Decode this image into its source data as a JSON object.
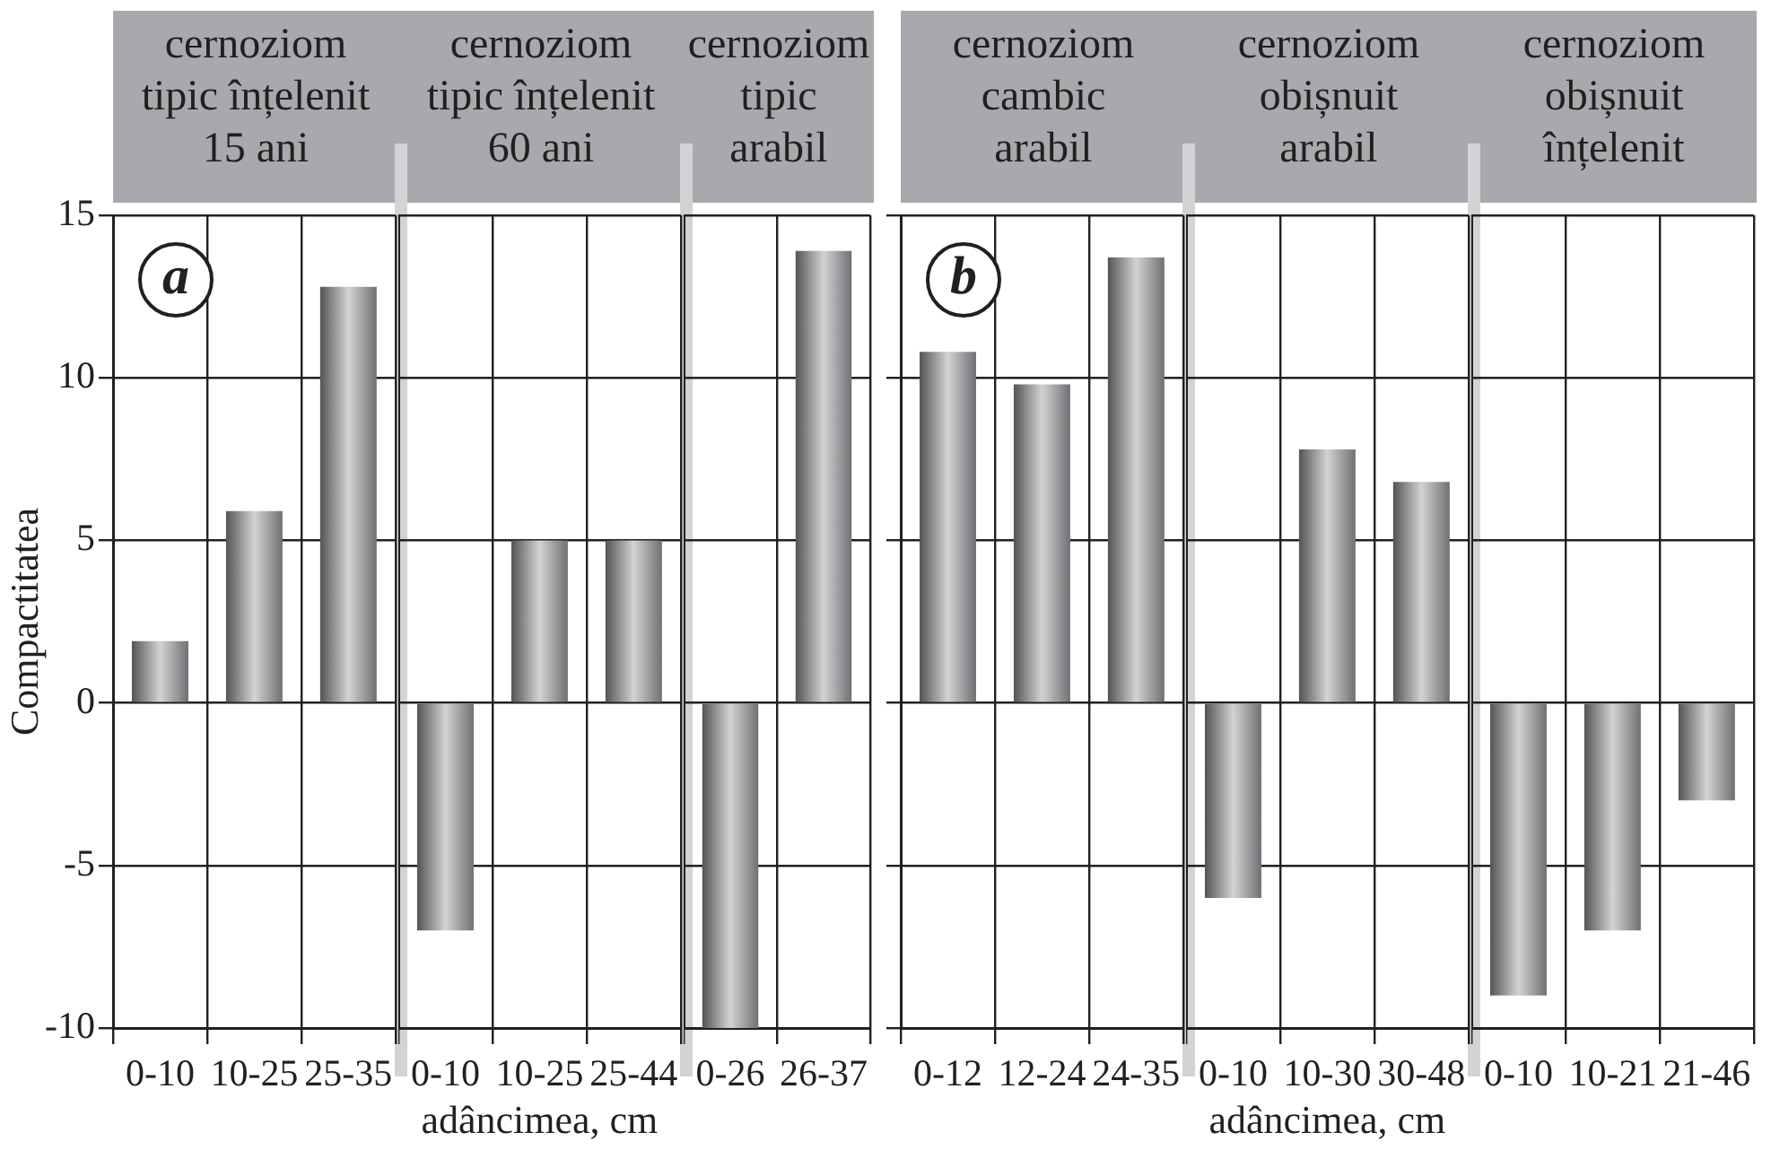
{
  "chart_data": [
    {
      "type": "bar",
      "title": "cernoziom\ntipic înțelenit\n15 ani",
      "ylabel": "Compactitatea",
      "annotations": [
        "a"
      ],
      "categories": [
        "0-10",
        "10-25",
        "25-35"
      ],
      "values": [
        1.9,
        5.9,
        12.8
      ],
      "color": "#8e9093",
      "ylim": [
        -10,
        15
      ],
      "yticks": [
        -10,
        -5,
        0,
        5,
        10,
        15
      ],
      "grid": true
    },
    {
      "type": "bar",
      "title": "cernoziom\ntipic înțelenit\n60 ani",
      "xlabel": "adâncimea, cm",
      "categories": [
        "0-10",
        "10-25",
        "25-44"
      ],
      "values": [
        -7,
        5,
        5
      ],
      "color": "#8e9093",
      "ylim": [
        -10,
        15
      ],
      "yticks": [
        -10,
        -5,
        0,
        5,
        10,
        15
      ],
      "grid": true,
      "tick_labels": "x"
    },
    {
      "type": "bar",
      "title": "cernoziom\ntipic\narabil",
      "categories": [
        "0-26",
        "26-37"
      ],
      "values": [
        -10,
        13.9
      ],
      "color": "#8e9093",
      "ylim": [
        -10,
        15
      ],
      "yticks": [
        -10,
        -5,
        0,
        5,
        10,
        15
      ],
      "grid": true,
      "tick_labels": "x"
    },
    {
      "type": "bar",
      "title": "cernoziom\ncambic\narabil",
      "annotations": [
        "b"
      ],
      "categories": [
        "0-12",
        "12-24",
        "24-35"
      ],
      "values": [
        10.8,
        9.8,
        13.7
      ],
      "color": "#8e9093",
      "ylim": [
        -10,
        15
      ],
      "yticks": [
        -10,
        -5,
        0,
        5,
        10,
        15
      ],
      "grid": true,
      "tick_labels": "x"
    },
    {
      "type": "bar",
      "title": "cernoziom\nobișnuit\narabil",
      "xlabel": "adâncimea, cm",
      "categories": [
        "0-10",
        "10-30",
        "30-48"
      ],
      "values": [
        -6,
        7.8,
        6.8
      ],
      "color": "#8e9093",
      "ylim": [
        -10,
        15
      ],
      "yticks": [
        -10,
        -5,
        0,
        5,
        10,
        15
      ],
      "grid": true,
      "tick_labels": "x"
    },
    {
      "type": "bar",
      "title": "cernoziom\nobișnuit\nînțelenit",
      "categories": [
        "0-10",
        "10-21",
        "21-46"
      ],
      "values": [
        -9,
        -7,
        -3
      ],
      "color": "#8e9093",
      "ylim": [
        -10,
        15
      ],
      "yticks": [
        -10,
        -5,
        0,
        5,
        10,
        15
      ],
      "grid": true,
      "tick_labels": "x"
    }
  ]
}
